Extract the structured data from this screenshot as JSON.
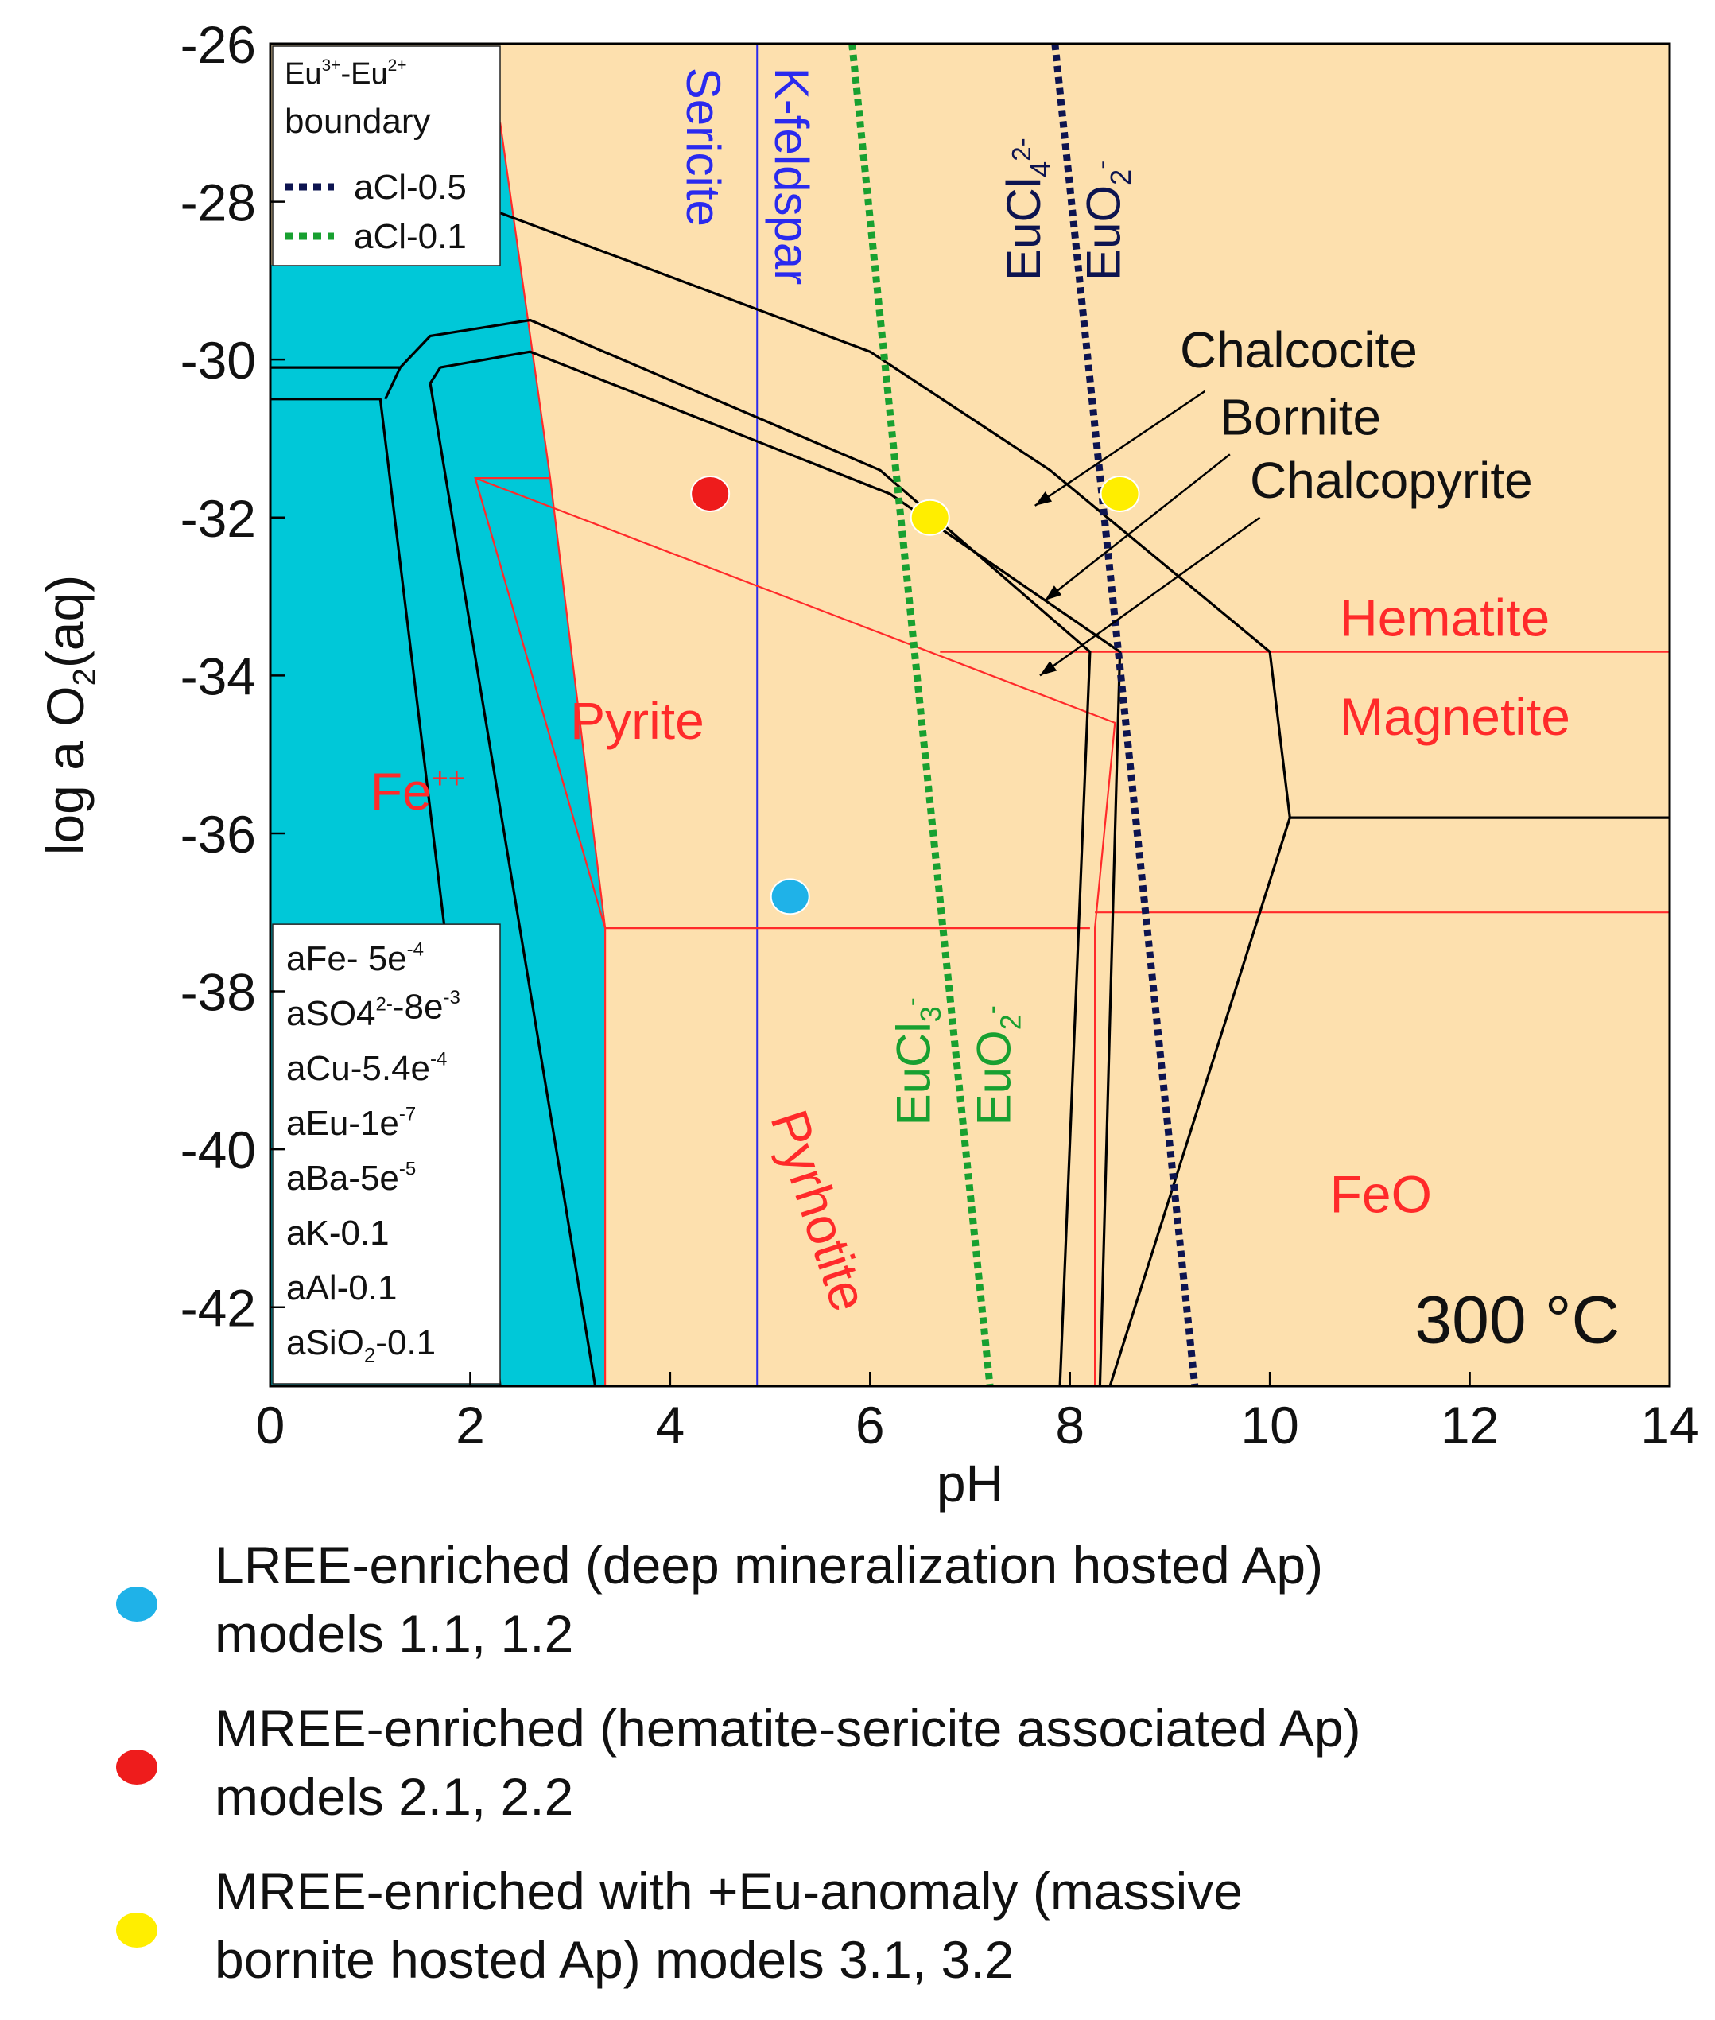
{
  "chart_data": {
    "type": "phase-diagram",
    "xlabel": "pH",
    "ylabel_parts": [
      "log a O",
      "2",
      "(aq)"
    ],
    "xlim": [
      0,
      14
    ],
    "ylim": [
      -43,
      -26
    ],
    "x_ticks": [
      "0",
      "2",
      "4",
      "6",
      "8",
      "10",
      "12",
      "14"
    ],
    "y_ticks": [
      "-26",
      "-28",
      "-30",
      "-32",
      "-34",
      "-36",
      "-38",
      "-40",
      "-42"
    ],
    "temperature_label": "300 °C",
    "colors": {
      "fe_field": "#00c8d8",
      "mineral_fields": "#fde0ae",
      "sulfide_boundaries": "#000000",
      "iron_mineral_boundaries": "#ff2a2a",
      "aluminosilicate_boundary": "#2a2aee",
      "eu_boundary_acl_05": "#0d1450",
      "eu_boundary_acl_01": "#18a030"
    },
    "field_labels": {
      "fe": "Fe",
      "fe_charge": "++",
      "pyrite": "Pyrite",
      "pyrrhotite": "Pyrhotite",
      "hematite": "Hematite",
      "magnetite": "Magnetite",
      "feo": "FeO",
      "sericite": "Sericite",
      "kfeldspar": "K-feldspar",
      "chalcocite": "Chalcocite",
      "bornite": "Bornite",
      "chalcopyrite": "Chalcopyrite"
    },
    "eu_species_labels": {
      "eucl4": "EuCl",
      "eucl4_sub": "4",
      "eucl4_sup": "2-",
      "euo2": "EuO",
      "euo2_sub": "2",
      "euo2_sup": "-",
      "eucl3": "EuCl",
      "eucl3_sub": "3",
      "eucl3_sup": "-"
    },
    "eu_boundary_legend": {
      "title_eu3": "Eu",
      "title_eu3_sup": "3+",
      "title_dash": "-Eu",
      "title_eu2_sup": "2+",
      "title_line2": "boundary",
      "entries": [
        {
          "name": "aCl-0.5",
          "color": "#0d1450"
        },
        {
          "name": "aCl-0.1",
          "color": "#18a030"
        }
      ]
    },
    "activity_box": [
      {
        "text": "aFe- 5e",
        "sup": "-4",
        "sub": "",
        "rest": ""
      },
      {
        "text": "aSO4",
        "sup": "2-",
        "sub": "",
        "rest": "-8e",
        "rest_sup": "-3"
      },
      {
        "text": "aCu-5.4e",
        "sup": "-4",
        "sub": "",
        "rest": ""
      },
      {
        "text": "aEu-1e",
        "sup": "-7",
        "sub": "",
        "rest": ""
      },
      {
        "text": "aBa-5e",
        "sup": "-5",
        "sub": "",
        "rest": ""
      },
      {
        "text": "aK-0.1",
        "sup": "",
        "sub": "",
        "rest": ""
      },
      {
        "text": "aAl-0.1",
        "sup": "",
        "sub": "",
        "rest": ""
      },
      {
        "text": "aSiO",
        "sup": "",
        "sub": "2",
        "rest": "-0.1"
      }
    ],
    "points": [
      {
        "group": "LREE",
        "x": 5.2,
        "y": -36.8,
        "color": "#1fb2e8"
      },
      {
        "group": "MREE",
        "x": 4.4,
        "y": -31.7,
        "color": "#ee1c1c"
      },
      {
        "group": "MREE-Eu",
        "x": 6.6,
        "y": -32.0,
        "color": "#ffee00"
      },
      {
        "group": "MREE-Eu",
        "x": 8.5,
        "y": -31.7,
        "color": "#ffee00"
      }
    ],
    "legend": [
      {
        "color": "#1fb2e8",
        "line1": "LREE-enriched (deep mineralization hosted Ap)",
        "line2": "models 1.1, 1.2"
      },
      {
        "color": "#ee1c1c",
        "line1": "MREE-enriched (hematite-sericite associated Ap)",
        "line2": "models 2.1, 2.2"
      },
      {
        "color": "#ffee00",
        "line1": "MREE-enriched with +Eu-anomaly (massive",
        "line2": "bornite hosted Ap) models 3.1, 3.2"
      }
    ]
  }
}
